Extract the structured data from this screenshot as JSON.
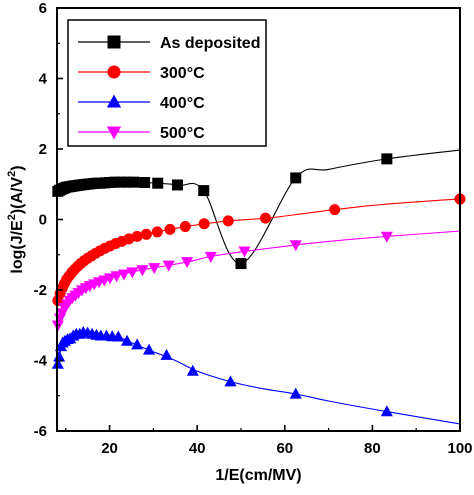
{
  "chart_data": {
    "type": "line",
    "xlabel": "1/E(cm/MV)",
    "ylabel_main": "log(J/E",
    "ylabel_sup1": "2",
    "ylabel_mid": ")(A/V",
    "ylabel_sup2": "2",
    "ylabel_end": ")",
    "xlim": [
      8,
      100
    ],
    "ylim": [
      -6,
      6
    ],
    "xticks": [
      "20",
      "40",
      "60",
      "80",
      "100"
    ],
    "xtick_values": [
      20,
      40,
      60,
      80,
      100
    ],
    "yticks": [
      "-6",
      "-4",
      "-2",
      "0",
      "2",
      "4",
      "6"
    ],
    "ytick_values": [
      -6,
      -4,
      -2,
      0,
      2,
      4,
      6
    ],
    "legend_position": "top-left",
    "series": [
      {
        "name": "As deposited",
        "color": "#000000",
        "marker": "square",
        "x": [
          8.2,
          8.6,
          9.0,
          9.4,
          9.8,
          10.3,
          10.8,
          11.3,
          11.8,
          12.3,
          12.9,
          13.5,
          14.1,
          14.8,
          15.5,
          16.3,
          17.1,
          18.0,
          19.0,
          20.0,
          21.2,
          22.5,
          24.0,
          25.5,
          28.0,
          31.0,
          35.5,
          41.5,
          50.0,
          62.5,
          83.3
        ],
        "y": [
          0.8,
          0.83,
          0.86,
          0.88,
          0.9,
          0.92,
          0.93,
          0.94,
          0.95,
          0.96,
          0.97,
          0.98,
          0.99,
          1.0,
          1.01,
          1.02,
          1.03,
          1.03,
          1.04,
          1.05,
          1.06,
          1.06,
          1.06,
          1.06,
          1.05,
          1.03,
          0.98,
          0.82,
          -1.25,
          1.18,
          1.72
        ],
        "curve_x": [
          8.2,
          12,
          16,
          20,
          24,
          28,
          32,
          36,
          41.5,
          50,
          62.5,
          70,
          83.3,
          100
        ],
        "curve_y": [
          0.8,
          0.96,
          1.02,
          1.05,
          1.06,
          1.05,
          1.02,
          0.97,
          0.82,
          -1.25,
          1.18,
          1.42,
          1.72,
          1.97
        ]
      },
      {
        "name": "300°C",
        "color": "#ff0000",
        "marker": "circle",
        "x": [
          8.2,
          8.7,
          9.2,
          9.7,
          10.2,
          10.8,
          11.4,
          12.0,
          12.7,
          13.4,
          14.2,
          15.0,
          15.9,
          16.8,
          17.8,
          18.9,
          20.1,
          21.4,
          22.8,
          24.4,
          26.3,
          28.4,
          30.9,
          33.8,
          37.3,
          41.6,
          47.1,
          55.6,
          71.4,
          100
        ],
        "y": [
          -2.3,
          -2.1,
          -1.95,
          -1.82,
          -1.7,
          -1.6,
          -1.5,
          -1.42,
          -1.33,
          -1.25,
          -1.17,
          -1.1,
          -1.03,
          -0.96,
          -0.89,
          -0.82,
          -0.75,
          -0.68,
          -0.62,
          -0.55,
          -0.48,
          -0.42,
          -0.35,
          -0.28,
          -0.2,
          -0.12,
          -0.04,
          0.04,
          0.28,
          0.58
        ],
        "curve_x": [
          8,
          10,
          12,
          15,
          18,
          22,
          26,
          30,
          35,
          40,
          47,
          56,
          65,
          71.4,
          80,
          90,
          100
        ],
        "curve_y": [
          -2.45,
          -1.75,
          -1.42,
          -1.1,
          -0.88,
          -0.64,
          -0.48,
          -0.37,
          -0.25,
          -0.15,
          -0.04,
          0.04,
          0.18,
          0.28,
          0.4,
          0.5,
          0.58
        ]
      },
      {
        "name": "400°C",
        "color": "#0000ff",
        "marker": "triangle-up",
        "x": [
          8.2,
          8.5,
          8.9,
          9.3,
          9.8,
          10.4,
          11.0,
          11.7,
          12.4,
          13.2,
          14.0,
          15.0,
          16.0,
          17.0,
          18.0,
          19.3,
          20.6,
          22.0,
          24.0,
          26.3,
          29.0,
          33.0,
          39.0,
          47.6,
          62.5,
          83.3
        ],
        "y": [
          -4.1,
          -3.9,
          -3.6,
          -3.5,
          -3.45,
          -3.4,
          -3.38,
          -3.3,
          -3.25,
          -3.25,
          -3.2,
          -3.22,
          -3.25,
          -3.28,
          -3.3,
          -3.3,
          -3.32,
          -3.33,
          -3.45,
          -3.55,
          -3.7,
          -3.85,
          -4.3,
          -4.6,
          -4.95,
          -5.45
        ],
        "curve_x": [
          8,
          9,
          10,
          12,
          14,
          16,
          18,
          20,
          22,
          26,
          30,
          35,
          40,
          47.6,
          55,
          62.5,
          70,
          83.3,
          100
        ],
        "curve_y": [
          -4.2,
          -3.65,
          -3.45,
          -3.3,
          -3.22,
          -3.24,
          -3.28,
          -3.31,
          -3.33,
          -3.55,
          -3.75,
          -4.0,
          -4.3,
          -4.6,
          -4.8,
          -4.95,
          -5.15,
          -5.45,
          -5.8
        ]
      },
      {
        "name": "500°C",
        "color": "#ff00ff",
        "marker": "triangle-down",
        "x": [
          8.2,
          8.7,
          9.2,
          9.7,
          10.3,
          10.9,
          11.5,
          12.2,
          12.9,
          13.7,
          14.6,
          15.5,
          16.5,
          17.6,
          18.8,
          20.1,
          21.6,
          23.3,
          25.2,
          27.5,
          30.2,
          33.5,
          37.7,
          43.1,
          50.8,
          62.5,
          83.3
        ],
        "y": [
          -3.0,
          -2.8,
          -2.65,
          -2.5,
          -2.4,
          -2.3,
          -2.22,
          -2.15,
          -2.08,
          -2.0,
          -1.94,
          -1.88,
          -1.83,
          -1.77,
          -1.72,
          -1.66,
          -1.6,
          -1.55,
          -1.49,
          -1.43,
          -1.37,
          -1.3,
          -1.2,
          -1.05,
          -0.9,
          -0.72,
          -0.48
        ],
        "curve_x": [
          8,
          10,
          12,
          15,
          18,
          22,
          27,
          32,
          38,
          43,
          50,
          60,
          70,
          83.3,
          100
        ],
        "curve_y": [
          -3.1,
          -2.45,
          -2.17,
          -1.9,
          -1.75,
          -1.58,
          -1.44,
          -1.33,
          -1.2,
          -1.05,
          -0.92,
          -0.76,
          -0.62,
          -0.48,
          -0.33
        ]
      }
    ]
  }
}
